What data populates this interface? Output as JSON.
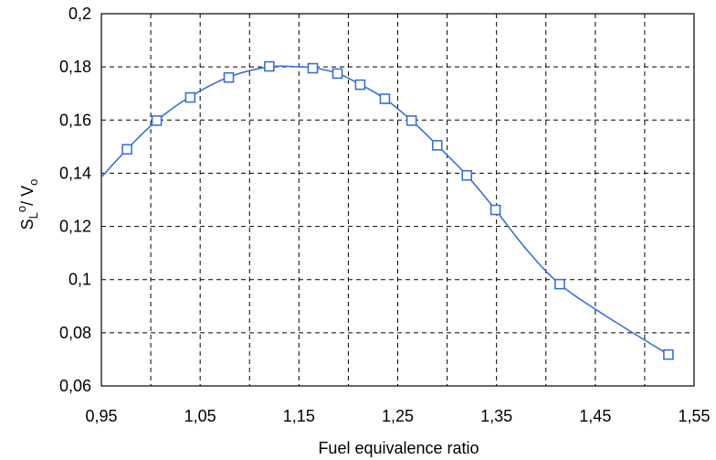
{
  "chart_data": {
    "type": "scatter",
    "title": "",
    "xlabel": "Fuel equivalence ratio",
    "ylabel": {
      "main": "S",
      "sub": "L",
      "sup": "o",
      "rest": "/ V",
      "rest_sub": "o"
    },
    "xlim": [
      0.95,
      1.55
    ],
    "ylim": [
      0.06,
      0.2
    ],
    "x_ticks": [
      0.95,
      1.05,
      1.15,
      1.25,
      1.35,
      1.45,
      1.55
    ],
    "x_tick_labels": [
      "0,95",
      "1,05",
      "1,15",
      "1,25",
      "1,35",
      "1,45",
      "1,55"
    ],
    "x_minor_gridlines": [
      1.0,
      1.1,
      1.2,
      1.3,
      1.4,
      1.5
    ],
    "y_ticks": [
      0.06,
      0.08,
      0.1,
      0.12,
      0.14,
      0.16,
      0.18,
      0.2
    ],
    "y_tick_labels": [
      "0,06",
      "0,08",
      "0,1",
      "0,12",
      "0,14",
      "0,16",
      "0,18",
      "0,2"
    ],
    "grid": true,
    "grid_style": "dashed",
    "series": [
      {
        "marker": "open-square",
        "color": "#3a6fd8",
        "x": [
          0.976,
          1.006,
          1.04,
          1.079,
          1.12,
          1.164,
          1.189,
          1.212,
          1.237,
          1.264,
          1.29,
          1.32,
          1.349,
          1.414,
          1.524
        ],
        "y": [
          0.149,
          0.1598,
          0.1685,
          0.176,
          0.1802,
          0.1795,
          0.1775,
          0.1733,
          0.168,
          0.1598,
          0.1505,
          0.1392,
          0.1262,
          0.0983,
          0.0718
        ]
      }
    ],
    "fit_curve": {
      "color": "#3a6fd8",
      "x": [
        0.95,
        0.976,
        1.006,
        1.04,
        1.079,
        1.12,
        1.15,
        1.164,
        1.189,
        1.212,
        1.237,
        1.264,
        1.29,
        1.32,
        1.349,
        1.38,
        1.414,
        1.46,
        1.524
      ],
      "y": [
        0.1385,
        0.149,
        0.1598,
        0.1688,
        0.1762,
        0.18,
        0.18,
        0.1797,
        0.1776,
        0.1734,
        0.168,
        0.1598,
        0.1505,
        0.1392,
        0.1262,
        0.1115,
        0.0983,
        0.0865,
        0.0718
      ]
    }
  }
}
